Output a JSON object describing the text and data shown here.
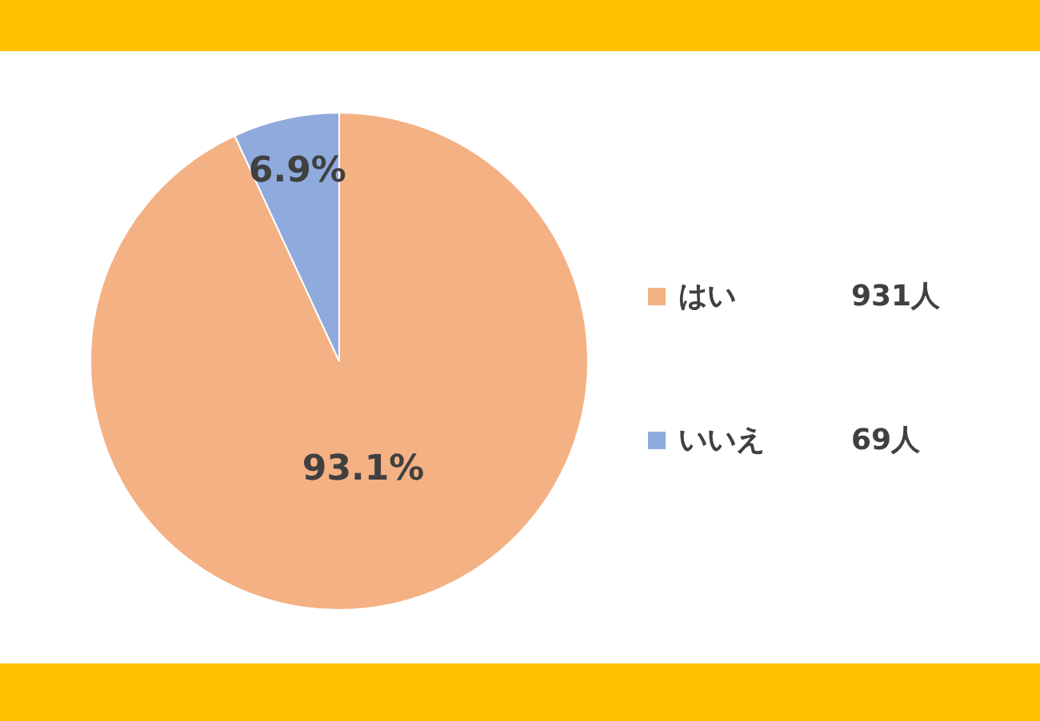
{
  "chart_data": {
    "type": "pie",
    "categories": [
      "はい",
      "いいえ"
    ],
    "values": [
      93.1,
      6.9
    ],
    "colors": [
      "#f4b183",
      "#8faadc"
    ],
    "value_labels": [
      "93.1%",
      "6.9%"
    ],
    "annotations": [
      "931人",
      "69人"
    ],
    "legend": "right"
  }
}
